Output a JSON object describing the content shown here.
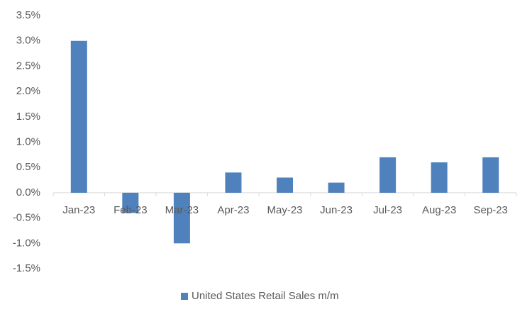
{
  "chart_data": {
    "type": "bar",
    "categories": [
      "Jan-23",
      "Feb-23",
      "Mar-23",
      "Apr-23",
      "May-23",
      "Jun-23",
      "Jul-23",
      "Aug-23",
      "Sep-23"
    ],
    "series": [
      {
        "name": "United States Retail Sales m/m",
        "color": "#4f81bd",
        "values": [
          3.0,
          -0.4,
          -1.0,
          0.4,
          0.3,
          0.2,
          0.7,
          0.6,
          0.7
        ]
      }
    ],
    "ylim": [
      -1.5,
      3.5
    ],
    "yticks": [
      {
        "value": -1.5,
        "label": "-1.5%"
      },
      {
        "value": -1.0,
        "label": "-1.0%"
      },
      {
        "value": -0.5,
        "label": "-0.5%"
      },
      {
        "value": 0.0,
        "label": "0.0%"
      },
      {
        "value": 0.5,
        "label": "0.5%"
      },
      {
        "value": 1.0,
        "label": "1.0%"
      },
      {
        "value": 1.5,
        "label": "1.5%"
      },
      {
        "value": 2.0,
        "label": "2.0%"
      },
      {
        "value": 2.5,
        "label": "2.5%"
      },
      {
        "value": 3.0,
        "label": "3.0%"
      },
      {
        "value": 3.5,
        "label": "3.5%"
      }
    ],
    "grid": false,
    "legend": "bottom"
  }
}
